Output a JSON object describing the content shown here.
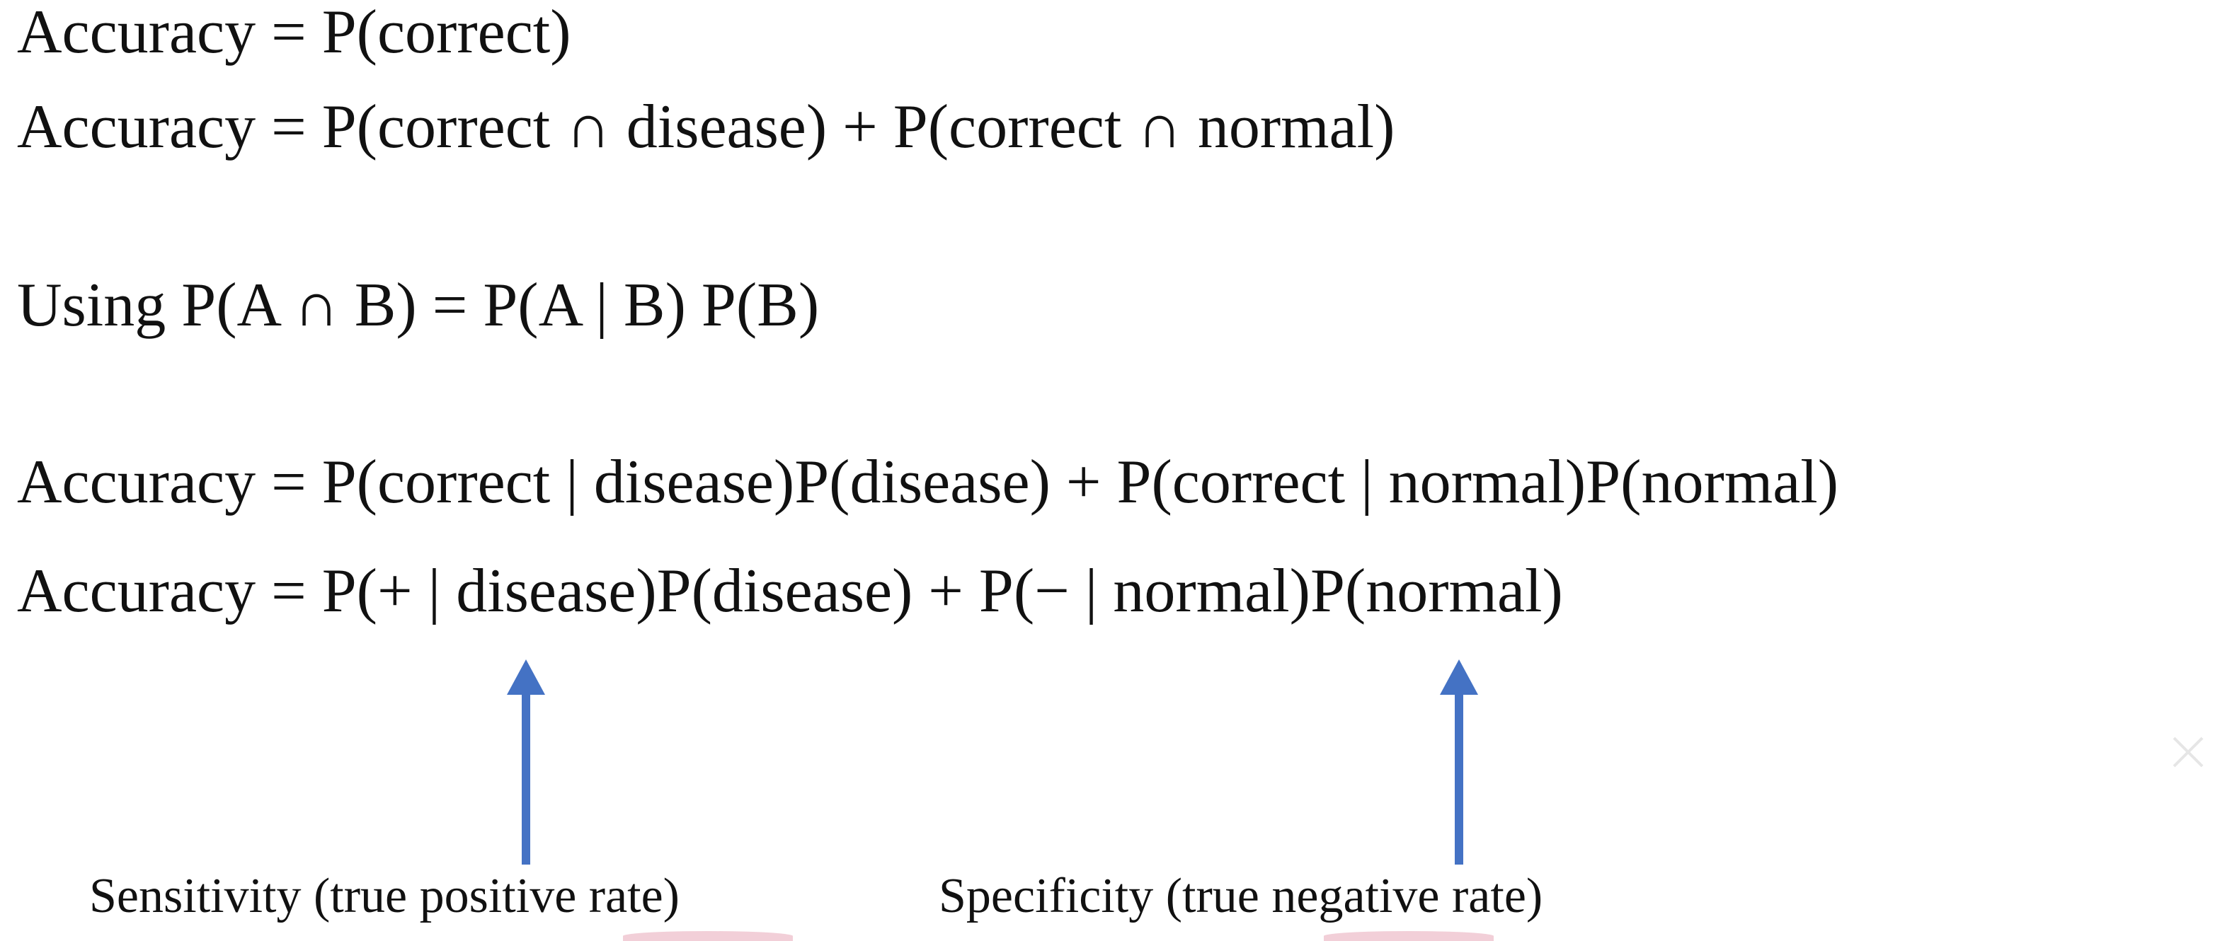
{
  "equations": {
    "line1": "Accuracy  = P(correct)",
    "line2": "Accuracy  = P(correct  ∩ disease) + P(correct  ∩ normal)",
    "line3": "Using P(A  ∩  B) =  P(A | B) P(B)",
    "line4": "Accuracy  = P(correct | disease)P(disease) + P(correct | normal)P(normal)",
    "line5": "Accuracy = P(+ | disease)P(disease) + P(− | normal)P(normal)"
  },
  "annotations": {
    "left_label": "Sensitivity (true positive rate)",
    "right_label": "Specificity (true negative rate)",
    "arrow_icon": "up-arrow-icon",
    "arrow_color": "#4472c4"
  }
}
